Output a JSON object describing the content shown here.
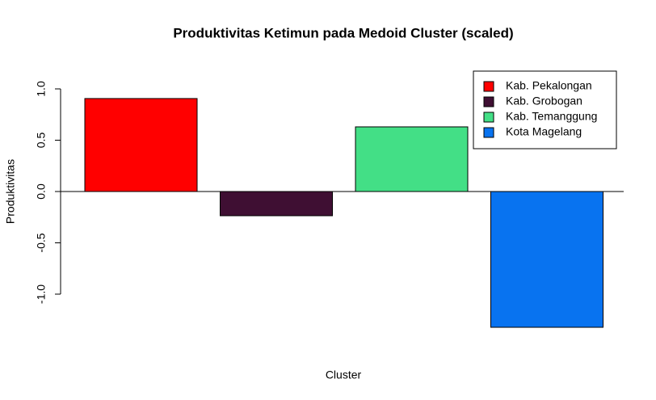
{
  "chart_data": {
    "type": "bar",
    "title": "Produktivitas Ketimun pada Medoid Cluster (scaled)",
    "x_label": "Cluster",
    "y_label": "Produktivitas",
    "series": [
      {
        "name": "Kab. Pekalongan",
        "color": "#ff0000",
        "values": [
          0.906
        ]
      },
      {
        "name": "Kab. Grobogan",
        "color": "#3f0f33",
        "values": [
          -0.236
        ]
      },
      {
        "name": "Kab. Temanggung",
        "color": "#43df86",
        "values": [
          0.63
        ]
      },
      {
        "name": "Kota Magelang",
        "color": "#0873f0",
        "values": [
          -1.323
        ]
      }
    ],
    "ylim": [
      -1.35,
      1.0
    ],
    "yticks": [
      {
        "value": -1,
        "label": "-1.0"
      },
      {
        "value": -0.5,
        "label": "-0.5"
      },
      {
        "value": 0,
        "label": "0.0"
      },
      {
        "value": 0.5,
        "label": "0.5"
      },
      {
        "value": 1,
        "label": "1.0"
      }
    ],
    "legend": "top-right"
  }
}
